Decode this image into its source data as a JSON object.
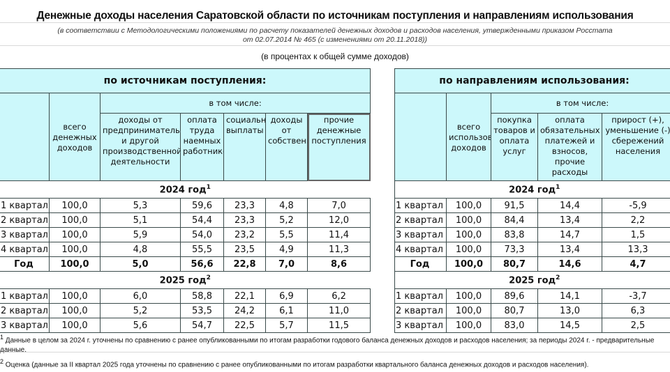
{
  "title": "Денежные доходы населения Саратовской области по источникам поступления и направлениям использования",
  "subtitle_line1": "(в соответствии с Методологическими положениями по расчету показателей денежных доходов и расходов населения, утвержденными приказом Росстата",
  "subtitle_line2": "от 02.07.2014 № 465  (с изменениями от 20.11.2018))",
  "units": "(в процентах к общей сумме доходов)",
  "left": {
    "heading": "по источникам поступления:",
    "total_header": "всего денежных доходов",
    "incl_header": "в том числе:",
    "columns": [
      "доходы от предпринимательской и другой производственной деятельности",
      "оплата труда наемных работников",
      "социальные выплаты",
      "доходы от собственности",
      "прочие денежные поступления"
    ],
    "years": [
      {
        "label": "2024 год",
        "sup": "1",
        "rows": [
          [
            "1 квартал",
            "100,0",
            "5,3",
            "59,6",
            "23,3",
            "4,8",
            "7,0"
          ],
          [
            "2 квартал",
            "100,0",
            "5,1",
            "54,4",
            "23,3",
            "5,2",
            "12,0"
          ],
          [
            "3 квартал",
            "100,0",
            "5,9",
            "54,0",
            "23,2",
            "5,5",
            "11,4"
          ],
          [
            "4 квартал",
            "100,0",
            "4,8",
            "55,5",
            "23,5",
            "4,9",
            "11,3"
          ],
          [
            "Год",
            "100,0",
            "5,0",
            "56,6",
            "22,8",
            "7,0",
            "8,6"
          ]
        ]
      },
      {
        "label": "2025 год",
        "sup": "2",
        "rows": [
          [
            "1 квартал",
            "100,0",
            "6,0",
            "58,8",
            "22,1",
            "6,9",
            "6,2"
          ],
          [
            "2 квартал",
            "100,0",
            "5,2",
            "53,5",
            "24,2",
            "6,1",
            "11,0"
          ],
          [
            "3 квартал",
            "100,0",
            "5,6",
            "54,7",
            "22,5",
            "5,7",
            "11,5"
          ]
        ]
      }
    ]
  },
  "right": {
    "heading": "по направлениям использования:",
    "total_header": "всего использовано доходов",
    "incl_header": "в том числе:",
    "columns": [
      "покупка товаров и оплата услуг",
      "оплата обязательных платежей и взносов, прочие расходы",
      "прирост (+), уменьшение (-) сбережений населения"
    ],
    "years": [
      {
        "label": "2024 год",
        "sup": "1",
        "rows": [
          [
            "1 квартал",
            "100,0",
            "91,5",
            "14,4",
            "-5,9"
          ],
          [
            "2 квартал",
            "100,0",
            "84,4",
            "13,4",
            "2,2"
          ],
          [
            "3 квартал",
            "100,0",
            "83,8",
            "14,7",
            "1,5"
          ],
          [
            "4 квартал",
            "100,0",
            "73,3",
            "13,4",
            "13,3"
          ],
          [
            "Год",
            "100,0",
            "80,7",
            "14,6",
            "4,7"
          ]
        ]
      },
      {
        "label": "2025 год",
        "sup": "2",
        "rows": [
          [
            "1 квартал",
            "100,0",
            "89,6",
            "14,1",
            "-3,7"
          ],
          [
            "2 квартал",
            "100,0",
            "80,7",
            "13,0",
            "6,3"
          ],
          [
            "3 квартал",
            "100,0",
            "83,0",
            "14,5",
            "2,5"
          ]
        ]
      }
    ]
  },
  "footnotes": [
    {
      "sup": "1",
      "text": "Данные в целом за 2024 г. уточнены по сравнению с ранее опубликованными по итогам разработки годового баланса денежных доходов и расходов населения; за периоды 2024 г. - предварительные данные."
    },
    {
      "sup": "2",
      "text": "Оценка (данные за II квартал 2025 года уточнены по сравнению с ранее опубликованными по итогам разработки квартального баланса денежных доходов и расходов населения)."
    }
  ],
  "colors": {
    "header_bg": "#ccf8fb",
    "border": "#3a4a4a"
  }
}
